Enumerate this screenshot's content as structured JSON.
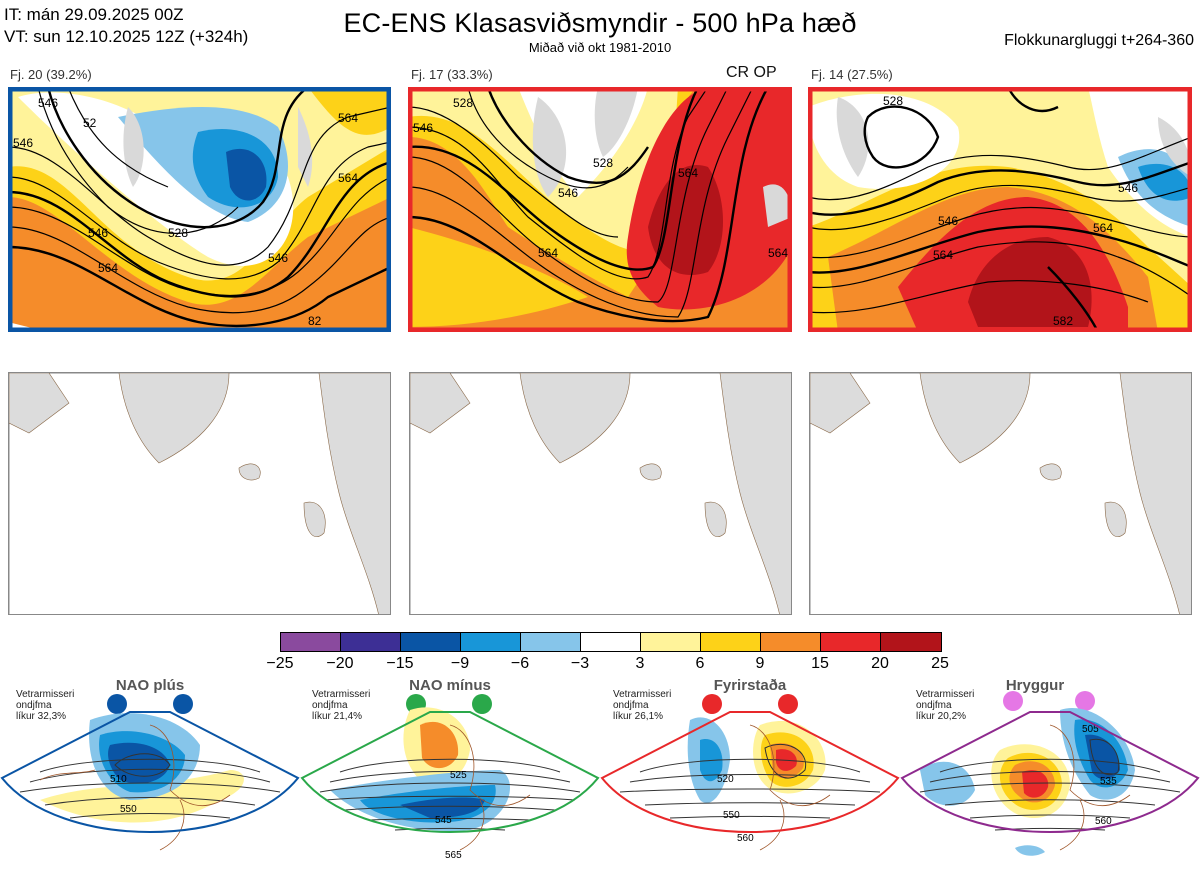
{
  "header": {
    "it_line": "IT: mán 29.09.2025 00Z",
    "vt_line": "VT: sun 12.10.2025 12Z  (+324h)",
    "title": "EC-ENS Klasasviðsmyndir - 500 hPa hæð",
    "subtitle": "Miðað við okt 1981-2010",
    "window": "Flokkunargluggi t+264-360"
  },
  "clusters": [
    {
      "label": "Fj. 20 (39.2%)",
      "tag": "",
      "border_color": "#0a55a5",
      "contour_labels": [
        "546",
        "52",
        "546",
        "564",
        "546",
        "528",
        "546",
        "564",
        "564",
        "82"
      ]
    },
    {
      "label": "Fj. 17 (33.3%)",
      "tag": "CR OP",
      "border_color": "#e8282a",
      "contour_labels": [
        "528",
        "546",
        "528",
        "546",
        "564",
        "564",
        "564"
      ]
    },
    {
      "label": "Fj. 14 (27.5%)",
      "tag": "",
      "border_color": "#e8282a",
      "contour_labels": [
        "528",
        "546",
        "546",
        "564",
        "564",
        "582"
      ]
    }
  ],
  "colorbar": {
    "ticks": [
      "−25",
      "−20",
      "−15",
      "−9",
      "−6",
      "−3",
      "3",
      "6",
      "9",
      "15",
      "20",
      "25"
    ],
    "colors": [
      "#8a4a9e",
      "#3d2f95",
      "#0a55a5",
      "#1896d8",
      "#86c5ea",
      "#ffffff",
      "#fff39a",
      "#fdd218",
      "#f58c2a",
      "#e8282a",
      "#b2141a"
    ]
  },
  "regimes": [
    {
      "name": "NAO plús",
      "info_1": "Vetrarmisseri",
      "info_2": "ondjfma",
      "info_3": "líkur 32,3%",
      "border_color": "#0a55a5",
      "dot_color": "#0a55a5",
      "contours": [
        "510",
        "550"
      ]
    },
    {
      "name": "NAO mínus",
      "info_1": "Vetrarmisseri",
      "info_2": "ondjfma",
      "info_3": "líkur 21,4%",
      "border_color": "#2aa84a",
      "dot_color": "#2aa84a",
      "contours": [
        "525",
        "545",
        "565"
      ]
    },
    {
      "name": "Fyrirstaða",
      "info_1": "Vetrarmisseri",
      "info_2": "ondjfma",
      "info_3": "líkur 26,1%",
      "border_color": "#e8282a",
      "dot_color": "#e8282a",
      "contours": [
        "520",
        "550",
        "560"
      ]
    },
    {
      "name": "Hryggur",
      "info_1": "Vetrarmisseri",
      "info_2": "ondjfma",
      "info_3": "líkur 20,2%",
      "border_color": "#8e2a8e",
      "dot_color": "#e577e5",
      "contours": [
        "505",
        "535",
        "560"
      ]
    }
  ]
}
